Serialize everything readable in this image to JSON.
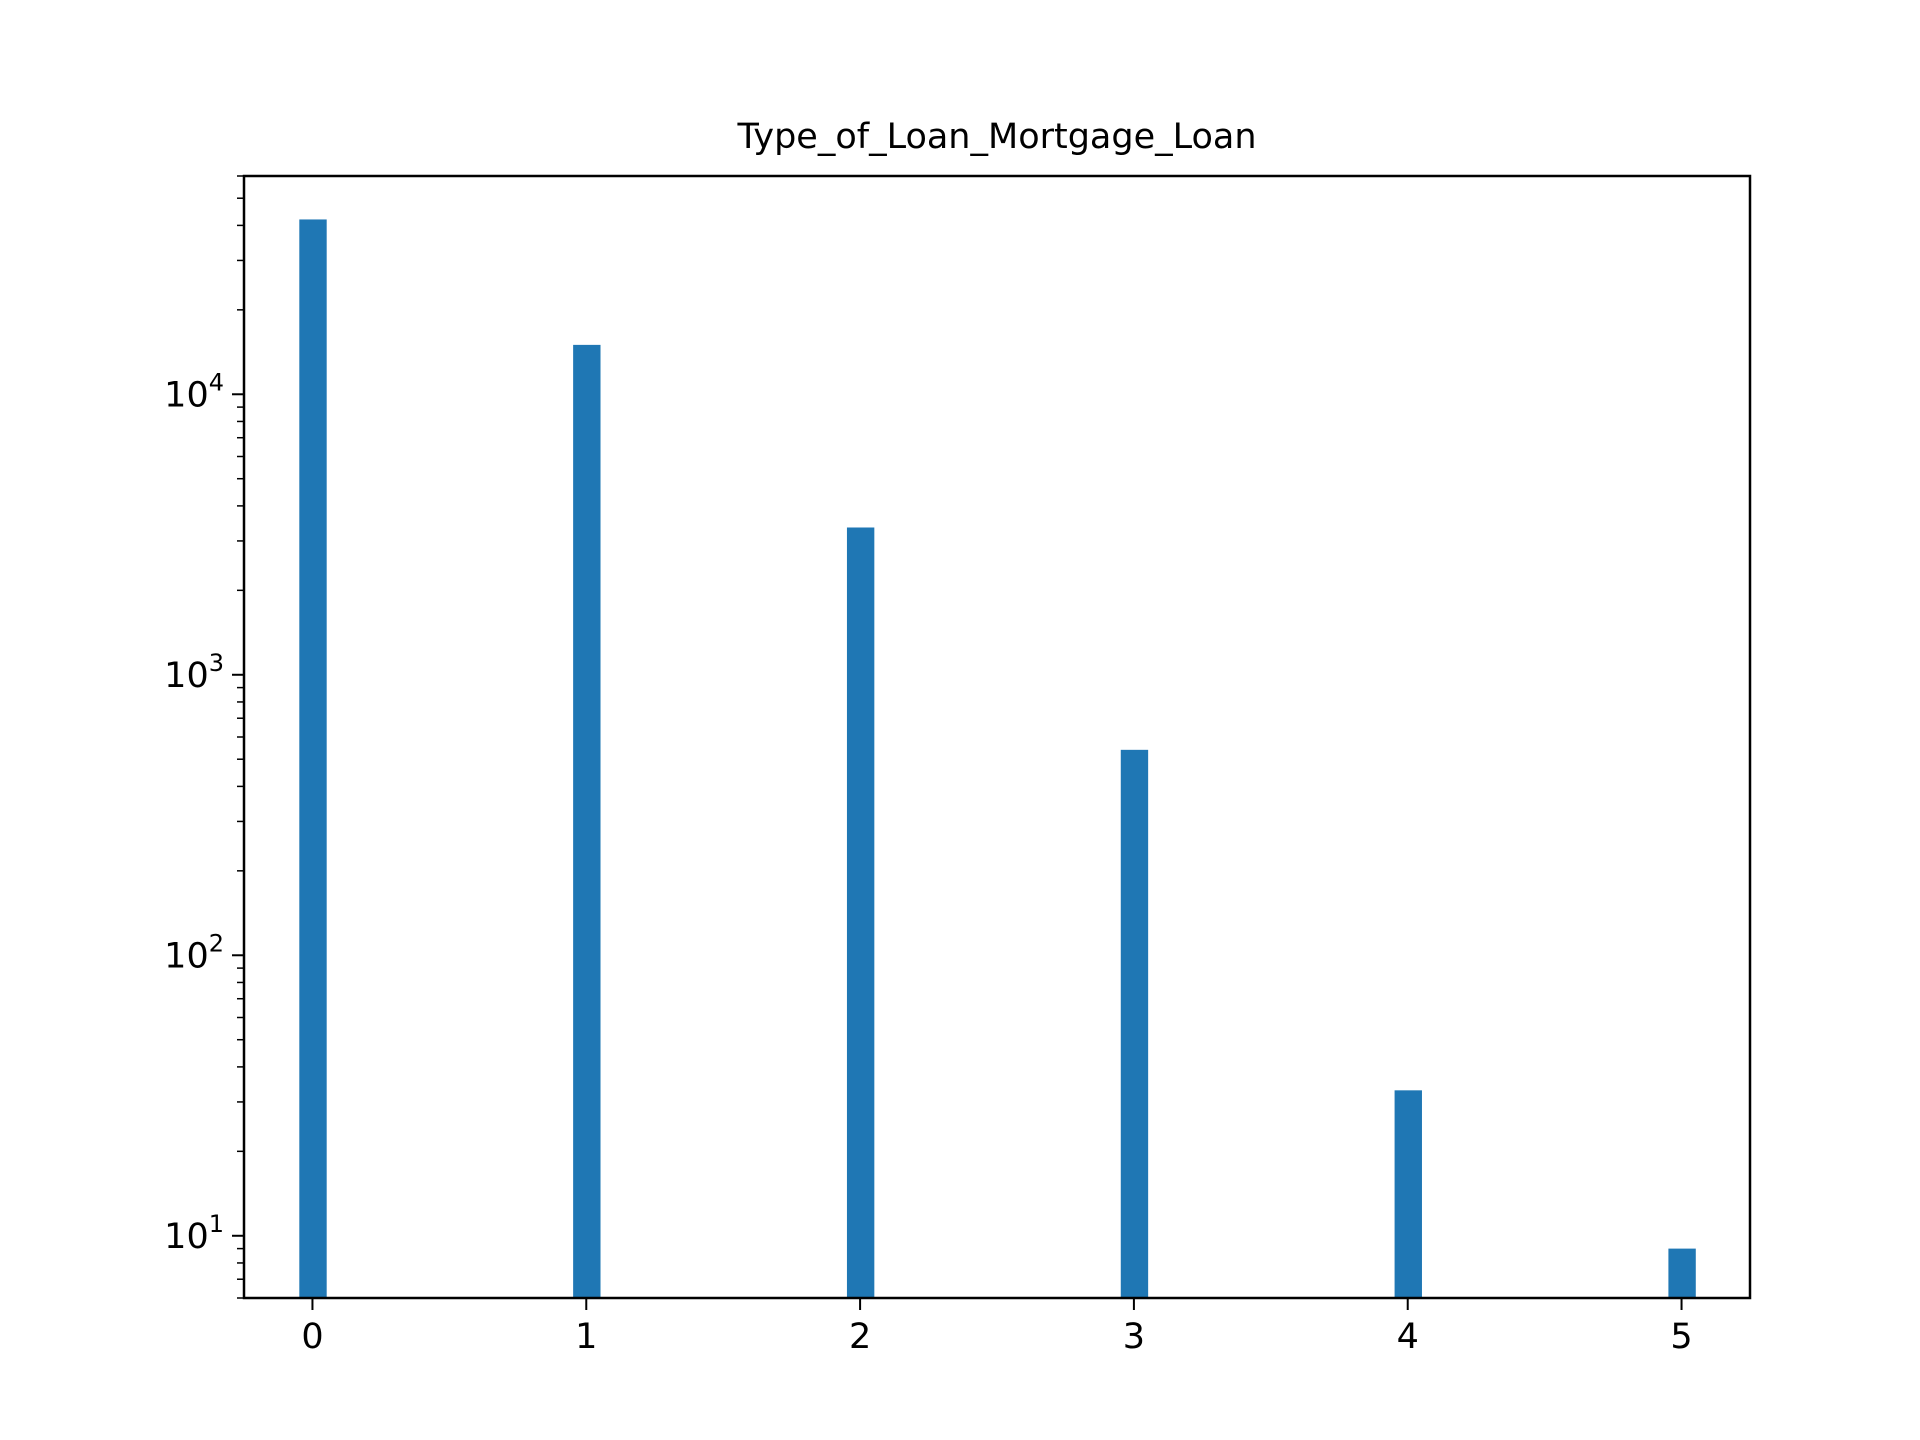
{
  "chart_data": {
    "type": "bar",
    "title": "Type_of_Loan_Mortgage_Loan",
    "xlabel": "",
    "ylabel": "",
    "y_scale": "log",
    "ylim": [
      6,
      60000
    ],
    "xlim": [
      -0.25,
      5.25
    ],
    "grid": false,
    "bar_color": "#1f77b4",
    "bar_width": 0.1,
    "x": [
      0,
      1,
      2,
      3,
      4,
      5
    ],
    "values": [
      42000,
      15000,
      3350,
      540,
      33,
      9
    ],
    "x_ticks": [
      {
        "value": 0,
        "label": "0"
      },
      {
        "value": 1,
        "label": "1"
      },
      {
        "value": 2,
        "label": "2"
      },
      {
        "value": 3,
        "label": "3"
      },
      {
        "value": 4,
        "label": "4"
      },
      {
        "value": 5,
        "label": "5"
      }
    ],
    "y_ticks": [
      {
        "value": 10,
        "base": "10",
        "exponent": "1"
      },
      {
        "value": 100,
        "base": "10",
        "exponent": "2"
      },
      {
        "value": 1000,
        "base": "10",
        "exponent": "3"
      },
      {
        "value": 10000,
        "base": "10",
        "exponent": "4"
      }
    ]
  }
}
